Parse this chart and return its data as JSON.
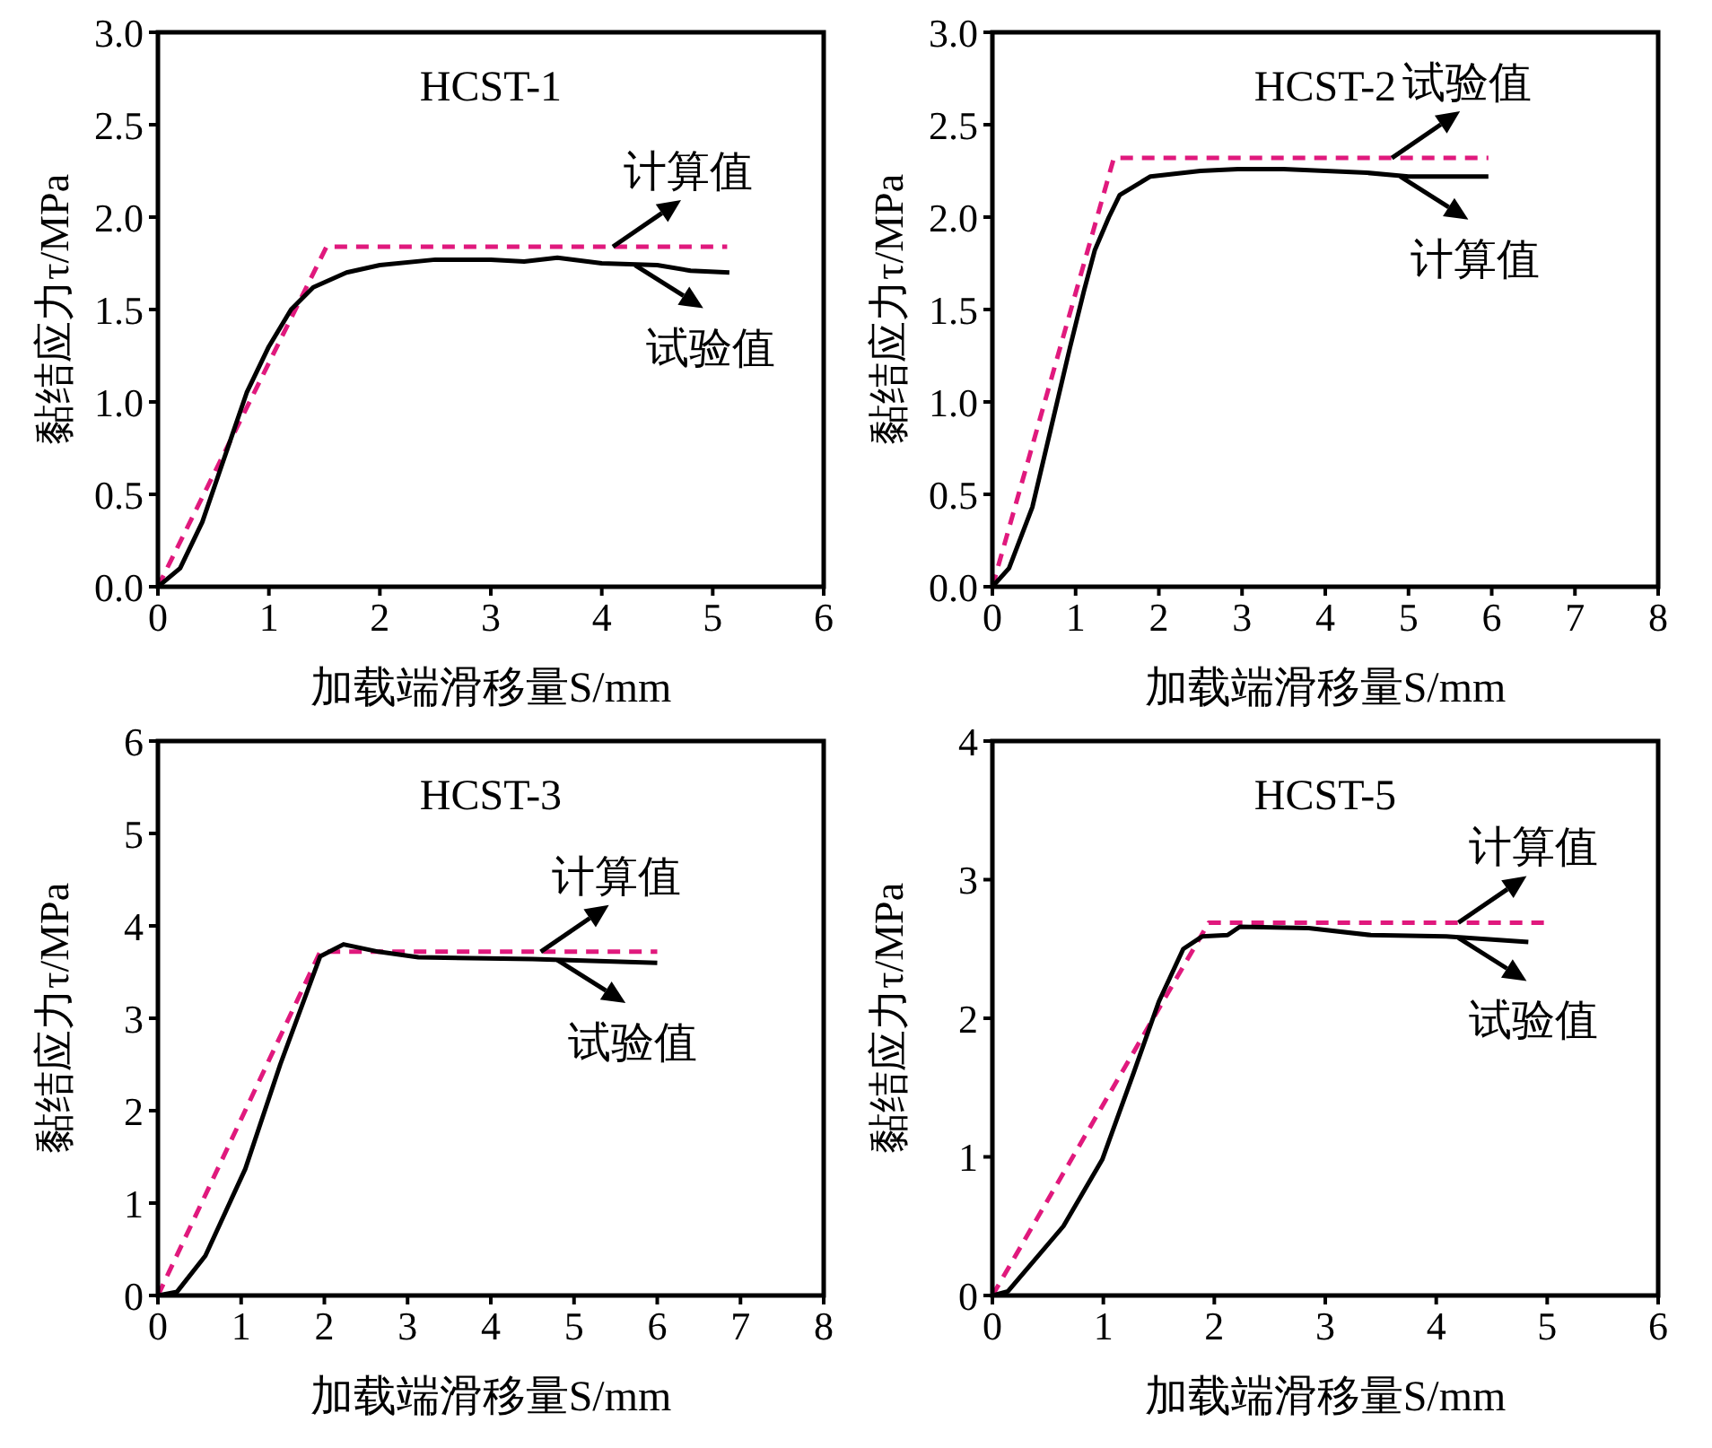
{
  "chart_data": [
    {
      "type": "line",
      "title": "HCST-1",
      "xlabel": "加载端滑移量S/mm",
      "ylabel": "黏结应力τ/MPa",
      "xlim": [
        0,
        6
      ],
      "xticks": [
        0,
        1,
        2,
        3,
        4,
        5,
        6
      ],
      "ylim": [
        0,
        3
      ],
      "yticks": [
        {
          "value": 0,
          "label": "0.0"
        },
        {
          "value": 0.5,
          "label": "0.5"
        },
        {
          "value": 1,
          "label": "1.0"
        },
        {
          "value": 1.5,
          "label": "1.5"
        },
        {
          "value": 2,
          "label": "2.0"
        },
        {
          "value": 2.5,
          "label": "2.5"
        },
        {
          "value": 3,
          "label": "3.0"
        }
      ],
      "marker": "none",
      "series": [
        {
          "color": "#e0197d",
          "line_style": "dashed",
          "x": [
            0,
            1.52,
            5.13
          ],
          "values": [
            0,
            1.84,
            1.84
          ]
        },
        {
          "color": "#000000",
          "line_style": "solid",
          "x": [
            0,
            0.2,
            0.4,
            0.6,
            0.8,
            1.0,
            1.2,
            1.4,
            1.7,
            2.0,
            2.5,
            3.0,
            3.3,
            3.6,
            4.0,
            4.5,
            4.8,
            5.15
          ],
          "values": [
            0,
            0.1,
            0.35,
            0.7,
            1.05,
            1.3,
            1.5,
            1.62,
            1.7,
            1.74,
            1.77,
            1.77,
            1.76,
            1.78,
            1.75,
            1.74,
            1.71,
            1.7
          ]
        }
      ],
      "annotations": [
        {
          "text": "计算值",
          "x": 4.1,
          "y": 1.84
        },
        {
          "text": "试验值",
          "x": 4.3,
          "y": 1.74
        }
      ]
    },
    {
      "type": "line",
      "title": "HCST-2",
      "xlabel": "加载端滑移量S/mm",
      "ylabel": "黏结应力τ/MPa",
      "xlim": [
        0,
        8
      ],
      "xticks": [
        0,
        1,
        2,
        3,
        4,
        5,
        6,
        7,
        8
      ],
      "ylim": [
        0,
        3
      ],
      "yticks": [
        {
          "value": 0,
          "label": "0.0"
        },
        {
          "value": 0.5,
          "label": "0.5"
        },
        {
          "value": 1,
          "label": "1.0"
        },
        {
          "value": 1.5,
          "label": "1.5"
        },
        {
          "value": 2,
          "label": "2.0"
        },
        {
          "value": 2.5,
          "label": "2.5"
        },
        {
          "value": 3,
          "label": "3.0"
        }
      ],
      "marker": "none",
      "series": [
        {
          "color": "#e0197d",
          "line_style": "dashed",
          "x": [
            0,
            1.46,
            5.96
          ],
          "values": [
            0,
            2.32,
            2.32
          ]
        },
        {
          "color": "#000000",
          "line_style": "solid",
          "x": [
            0,
            0.2,
            0.48,
            0.7,
            0.93,
            1.1,
            1.23,
            1.4,
            1.53,
            1.9,
            2.5,
            2.95,
            3.5,
            4.0,
            4.5,
            5.0,
            5.5,
            5.96
          ],
          "values": [
            0,
            0.1,
            0.43,
            0.85,
            1.29,
            1.6,
            1.82,
            2.0,
            2.12,
            2.22,
            2.25,
            2.26,
            2.26,
            2.25,
            2.24,
            2.22,
            2.22,
            2.22
          ]
        }
      ],
      "annotations": [
        {
          "text": "试验值",
          "x": 4.8,
          "y": 2.32
        },
        {
          "text": "计算值",
          "x": 4.9,
          "y": 2.22
        }
      ]
    },
    {
      "type": "line",
      "title": "HCST-3",
      "xlabel": "加载端滑移量S/mm",
      "ylabel": "黏结应力τ/MPa",
      "xlim": [
        0,
        8
      ],
      "xticks": [
        0,
        1,
        2,
        3,
        4,
        5,
        6,
        7,
        8
      ],
      "ylim": [
        0,
        6
      ],
      "yticks": [
        0,
        1,
        2,
        3,
        4,
        5,
        6
      ],
      "marker": "none",
      "series": [
        {
          "color": "#e0197d",
          "line_style": "dashed",
          "x": [
            0,
            1.95,
            6.0
          ],
          "values": [
            0,
            3.72,
            3.72
          ]
        },
        {
          "color": "#000000",
          "line_style": "solid",
          "x": [
            0,
            0.23,
            0.57,
            1.05,
            1.47,
            1.95,
            2.23,
            2.65,
            3.13,
            4.5,
            6.0
          ],
          "values": [
            0,
            0.04,
            0.43,
            1.37,
            2.5,
            3.67,
            3.8,
            3.72,
            3.66,
            3.64,
            3.6
          ]
        }
      ],
      "annotations": [
        {
          "text": "计算值",
          "x": 4.6,
          "y": 3.72
        },
        {
          "text": "试验值",
          "x": 4.8,
          "y": 3.63
        }
      ]
    },
    {
      "type": "line",
      "title": "HCST-5",
      "xlabel": "加载端滑移量S/mm",
      "ylabel": "黏结应力τ/MPa",
      "xlim": [
        0,
        6
      ],
      "xticks": [
        0,
        1,
        2,
        3,
        4,
        5,
        6
      ],
      "ylim": [
        0,
        4
      ],
      "yticks": [
        0,
        1,
        2,
        3,
        4
      ],
      "marker": "none",
      "series": [
        {
          "color": "#e0197d",
          "line_style": "dashed",
          "x": [
            0,
            1.95,
            4.97
          ],
          "values": [
            0,
            2.69,
            2.69
          ]
        },
        {
          "color": "#000000",
          "line_style": "solid",
          "x": [
            0,
            0.14,
            0.64,
            0.99,
            1.27,
            1.5,
            1.72,
            1.89,
            2.12,
            2.23,
            2.85,
            3.41,
            4.09,
            4.83
          ],
          "values": [
            0,
            0.03,
            0.5,
            0.98,
            1.6,
            2.12,
            2.5,
            2.59,
            2.6,
            2.66,
            2.65,
            2.6,
            2.59,
            2.55
          ]
        }
      ],
      "annotations": [
        {
          "text": "计算值",
          "x": 4.2,
          "y": 2.69
        },
        {
          "text": "试验值",
          "x": 4.2,
          "y": 2.58
        }
      ]
    }
  ]
}
